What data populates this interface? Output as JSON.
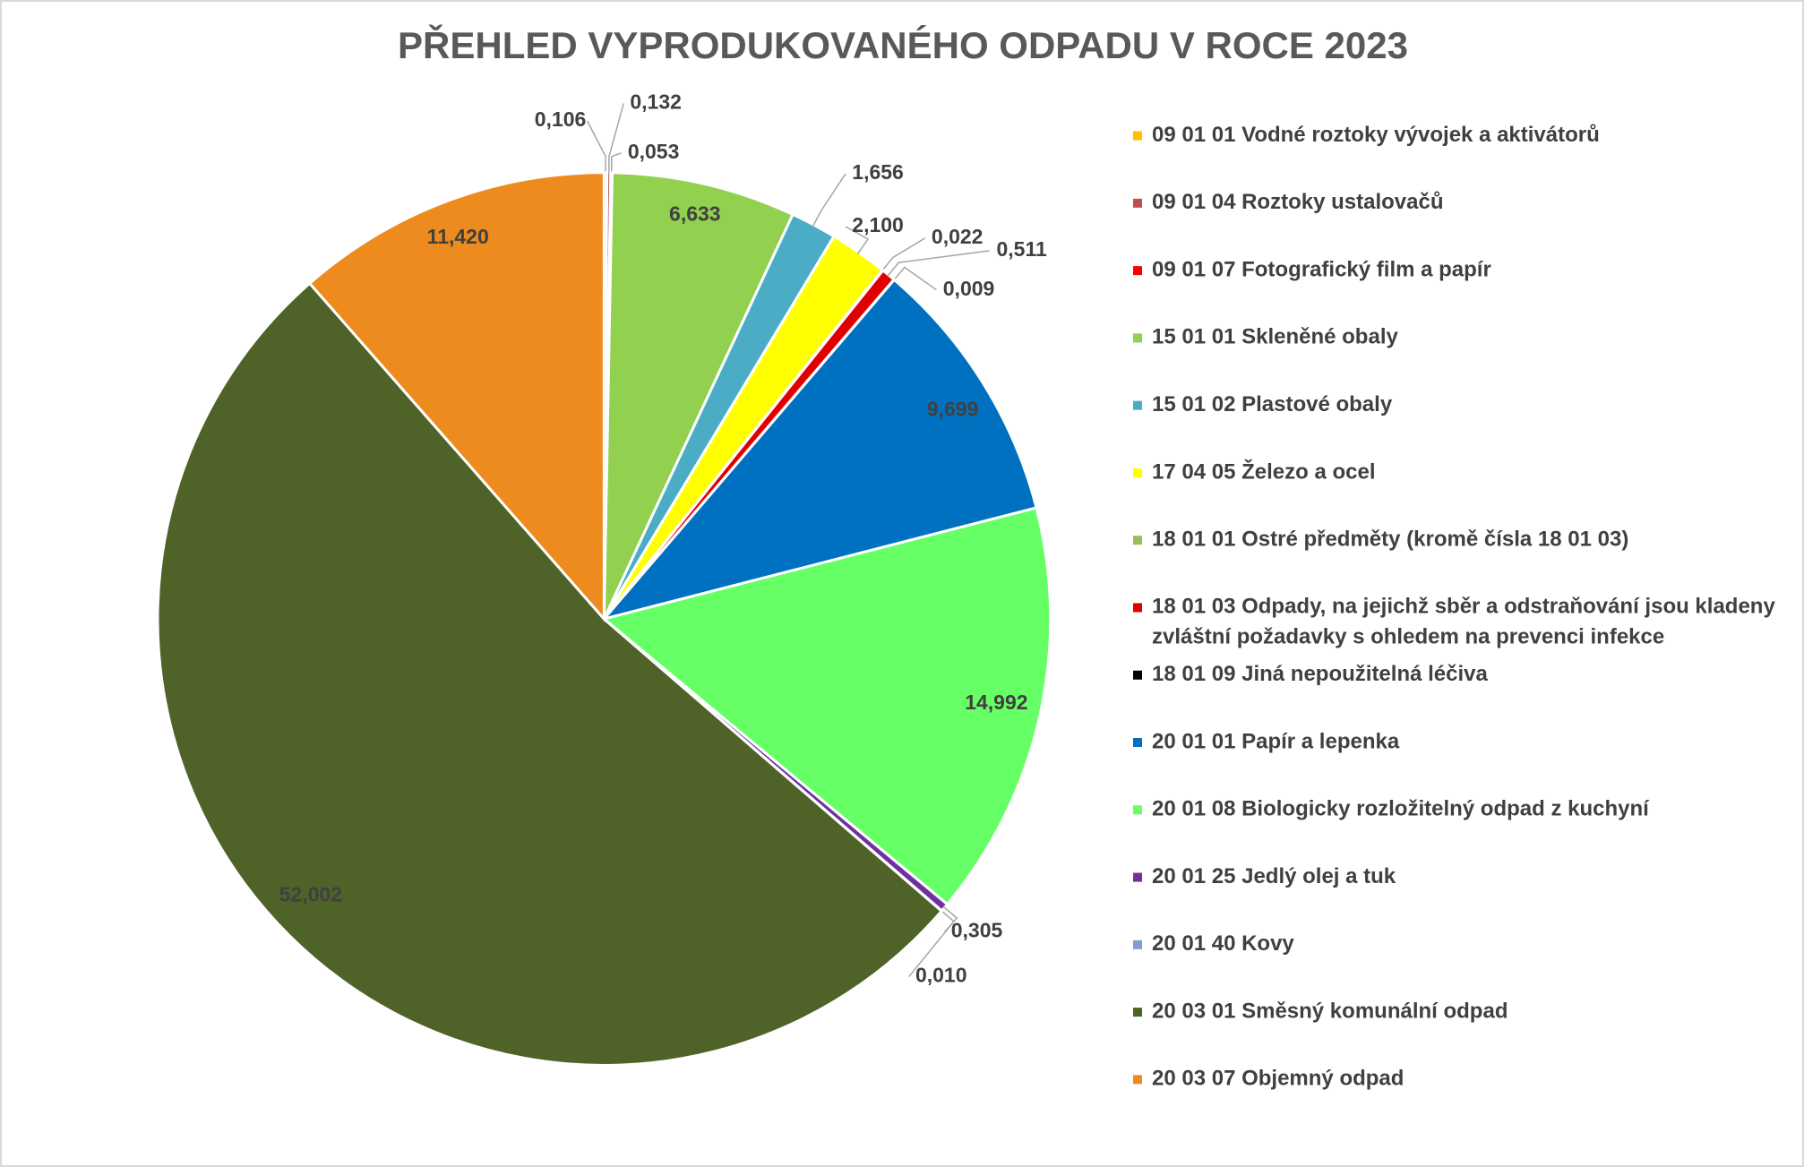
{
  "chart_data": {
    "type": "pie",
    "title": "PŘEHLED VYPRODUKOVANÉHO ODPADU V ROCE 2023",
    "categories": [
      "09 01 01 Vodné roztoky vývojek a aktivátorů",
      "09 01 04 Roztoky ustalovačů",
      "09 01 07 Fotografický film a papír",
      "15 01 01 Skleněné obaly",
      "15 01 02 Plastové obaly",
      "17 04 05 Železo a ocel",
      "18 01 01 Ostré předměty (kromě čísla 18 01 03)",
      "18 01 03 Odpady, na jejichž sběr a odstraňování  jsou kladeny zvláštní požadavky s ohledem na prevenci infekce",
      "18 01 09 Jiná nepoužitelná léčiva",
      "20 01 01 Papír a lepenka",
      "20 01 08 Biologicky rozložitelný odpad z kuchyní",
      "20 01 25 Jedlý olej a tuk",
      "20 01 40 Kovy",
      "20 03 01 Směsný komunální odpad",
      "20 03 07 Objemný odpad"
    ],
    "values": [
      0.106,
      0.132,
      0.053,
      6.633,
      1.656,
      2.1,
      0.022,
      0.511,
      0.009,
      9.699,
      14.992,
      0.305,
      0.01,
      52.002,
      11.42
    ],
    "value_labels": [
      "0,106",
      "0,132",
      "0,053",
      "6,633",
      "1,656",
      "2,100",
      "0,022",
      "0,511",
      "0,009",
      "9,699",
      "14,992",
      "0,305",
      "0,010",
      "52,002",
      "11,420"
    ],
    "colors": [
      "#ffc000",
      "#c0504d",
      "#ff0000",
      "#92d050",
      "#4bacc6",
      "#ffff00",
      "#9bbb59",
      "#e00000",
      "#000000",
      "#0070c0",
      "#66ff66",
      "#7030a0",
      "#7f9fcf",
      "#4f6228",
      "#ed8b1e"
    ],
    "legend": "right"
  }
}
